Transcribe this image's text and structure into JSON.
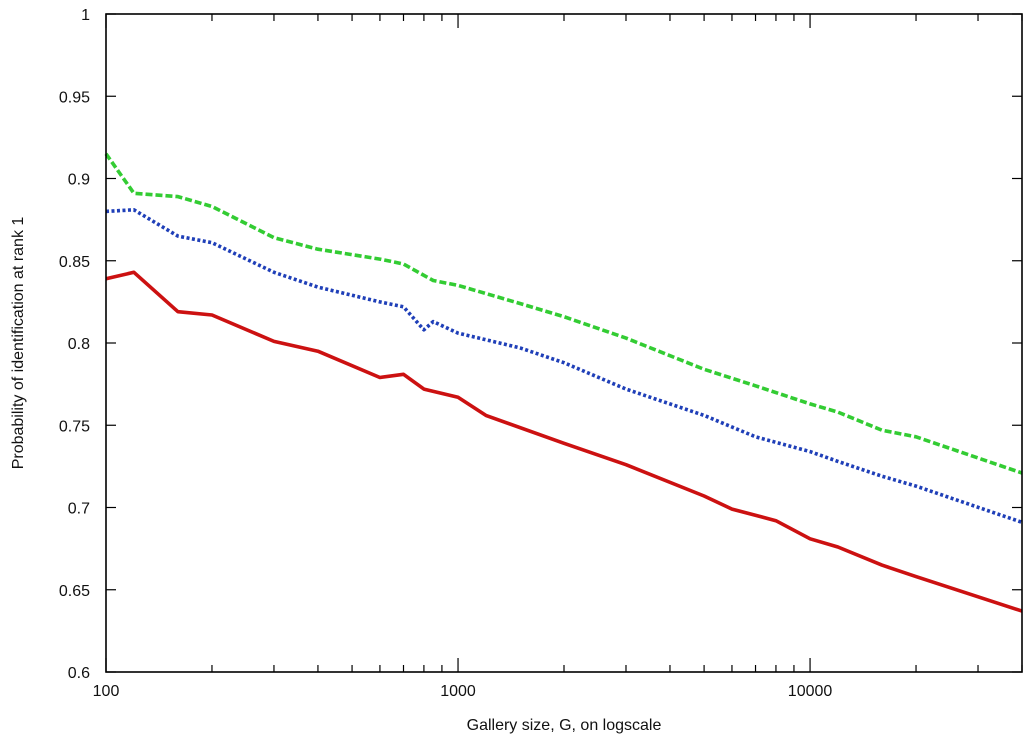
{
  "chart_data": {
    "type": "line",
    "title": "",
    "xlabel": "Gallery size, G, on logscale",
    "ylabel": "Probability of identification at rank 1",
    "xscale": "log",
    "xlim": [
      100,
      40000
    ],
    "ylim": [
      0.6,
      1.0
    ],
    "grid": false,
    "legend": "none",
    "x_ticks": [
      {
        "value": 100,
        "label": "100"
      },
      {
        "value": 1000,
        "label": "1000"
      },
      {
        "value": 10000,
        "label": "10000"
      }
    ],
    "y_ticks": [
      {
        "value": 0.6,
        "label": "0.6"
      },
      {
        "value": 0.65,
        "label": "0.65"
      },
      {
        "value": 0.7,
        "label": "0.7"
      },
      {
        "value": 0.75,
        "label": "0.75"
      },
      {
        "value": 0.8,
        "label": "0.8"
      },
      {
        "value": 0.85,
        "label": "0.85"
      },
      {
        "value": 0.9,
        "label": "0.9"
      },
      {
        "value": 0.95,
        "label": "0.95"
      },
      {
        "value": 1.0,
        "label": "1"
      }
    ],
    "series": [
      {
        "color": "#33cc33",
        "style": "dashed",
        "points": [
          [
            100,
            0.915
          ],
          [
            120,
            0.891
          ],
          [
            160,
            0.889
          ],
          [
            200,
            0.883
          ],
          [
            300,
            0.864
          ],
          [
            400,
            0.857
          ],
          [
            600,
            0.851
          ],
          [
            700,
            0.848
          ],
          [
            850,
            0.838
          ],
          [
            1000,
            0.835
          ],
          [
            1500,
            0.824
          ],
          [
            2000,
            0.816
          ],
          [
            3000,
            0.803
          ],
          [
            5000,
            0.784
          ],
          [
            7000,
            0.774
          ],
          [
            10000,
            0.763
          ],
          [
            12000,
            0.758
          ],
          [
            16000,
            0.747
          ],
          [
            20000,
            0.743
          ],
          [
            40000,
            0.721
          ]
        ]
      },
      {
        "color": "#1f3fb8",
        "style": "dotted",
        "points": [
          [
            100,
            0.88
          ],
          [
            120,
            0.881
          ],
          [
            160,
            0.865
          ],
          [
            200,
            0.861
          ],
          [
            300,
            0.843
          ],
          [
            400,
            0.834
          ],
          [
            600,
            0.825
          ],
          [
            700,
            0.822
          ],
          [
            800,
            0.808
          ],
          [
            850,
            0.813
          ],
          [
            1000,
            0.806
          ],
          [
            1500,
            0.797
          ],
          [
            2000,
            0.788
          ],
          [
            3000,
            0.772
          ],
          [
            5000,
            0.756
          ],
          [
            7000,
            0.743
          ],
          [
            10000,
            0.734
          ],
          [
            12000,
            0.728
          ],
          [
            16000,
            0.719
          ],
          [
            20000,
            0.713
          ],
          [
            40000,
            0.691
          ]
        ]
      },
      {
        "color": "#cc1111",
        "style": "solid",
        "points": [
          [
            100,
            0.839
          ],
          [
            120,
            0.843
          ],
          [
            160,
            0.819
          ],
          [
            200,
            0.817
          ],
          [
            300,
            0.801
          ],
          [
            400,
            0.795
          ],
          [
            600,
            0.779
          ],
          [
            700,
            0.781
          ],
          [
            800,
            0.772
          ],
          [
            1000,
            0.767
          ],
          [
            1200,
            0.756
          ],
          [
            2000,
            0.739
          ],
          [
            3000,
            0.726
          ],
          [
            5000,
            0.707
          ],
          [
            6000,
            0.699
          ],
          [
            8000,
            0.692
          ],
          [
            10000,
            0.681
          ],
          [
            12000,
            0.676
          ],
          [
            16000,
            0.665
          ],
          [
            20000,
            0.658
          ],
          [
            40000,
            0.637
          ]
        ]
      }
    ]
  }
}
